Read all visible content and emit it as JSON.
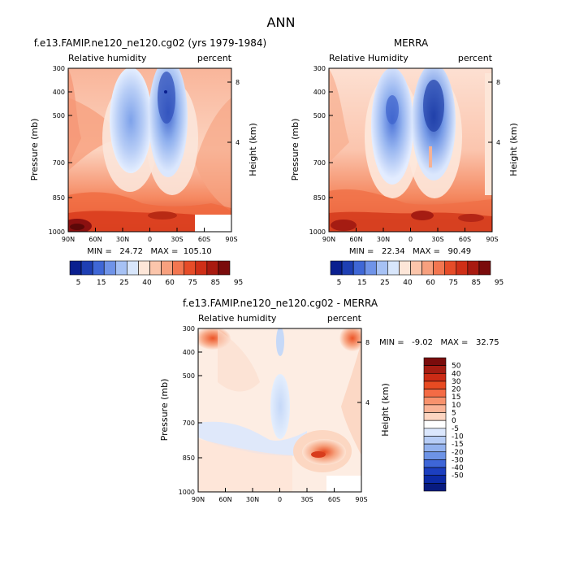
{
  "page_title": "ANN",
  "colors": {
    "blue_deep": "#0a1f8f",
    "blue_mid": "#5a85e0",
    "blue_light": "#c6dafa",
    "neutral": "#ffffff",
    "orange_light": "#fddccb",
    "orange_mid": "#f46b45",
    "red_deep": "#8b1010",
    "missing": "#ffffff"
  },
  "chart_data": [
    {
      "type": "heatmap",
      "title": "f.e13.FAMIP.ne120_ne120.cg02 (yrs 1979-1984)",
      "variable_label": "Relative humidity",
      "units_label": "percent",
      "ylabel": "Pressure (mb)",
      "ylabel_right": "Height (km)",
      "x_ticks": [
        "90N",
        "60N",
        "30N",
        "0",
        "30S",
        "60S",
        "90S"
      ],
      "y_ticks": [
        "300",
        "400",
        "500",
        "700",
        "850",
        "1000"
      ],
      "y_right_ticks": [
        "8",
        "4"
      ],
      "stats": "MIN =   24.72   MAX =  105.10",
      "colorbar": [
        "5",
        "15",
        "25",
        "40",
        "60",
        "75",
        "85",
        "95"
      ]
    },
    {
      "type": "heatmap",
      "title": "MERRA",
      "variable_label": "Relative Humidity",
      "units_label": "percent",
      "ylabel": "Pressure (mb)",
      "ylabel_right": "Height (km)",
      "x_ticks": [
        "90N",
        "60N",
        "30N",
        "0",
        "30S",
        "60S",
        "90S"
      ],
      "y_ticks": [
        "300",
        "400",
        "500",
        "700",
        "850",
        "1000"
      ],
      "y_right_ticks": [
        "8",
        "4"
      ],
      "stats": "MIN =   22.34   MAX =   90.49",
      "colorbar": [
        "5",
        "15",
        "25",
        "40",
        "60",
        "75",
        "85",
        "95"
      ]
    },
    {
      "type": "heatmap",
      "title": "f.e13.FAMIP.ne120_ne120.cg02 - MERRA",
      "variable_label": "Relative humidity",
      "units_label": "percent",
      "ylabel": "Pressure (mb)",
      "ylabel_right": "Height (km)",
      "x_ticks": [
        "90N",
        "60N",
        "30N",
        "0",
        "30S",
        "60S",
        "90S"
      ],
      "y_ticks": [
        "300",
        "400",
        "500",
        "700",
        "850",
        "1000"
      ],
      "y_right_ticks": [
        "8",
        "4"
      ],
      "stats": "MIN =   -9.02   MAX =   32.75",
      "colorbar": [
        "50",
        "40",
        "30",
        "20",
        "15",
        "10",
        "5",
        "0",
        "-5",
        "-10",
        "-15",
        "-20",
        "-30",
        "-40",
        "-50"
      ]
    }
  ]
}
